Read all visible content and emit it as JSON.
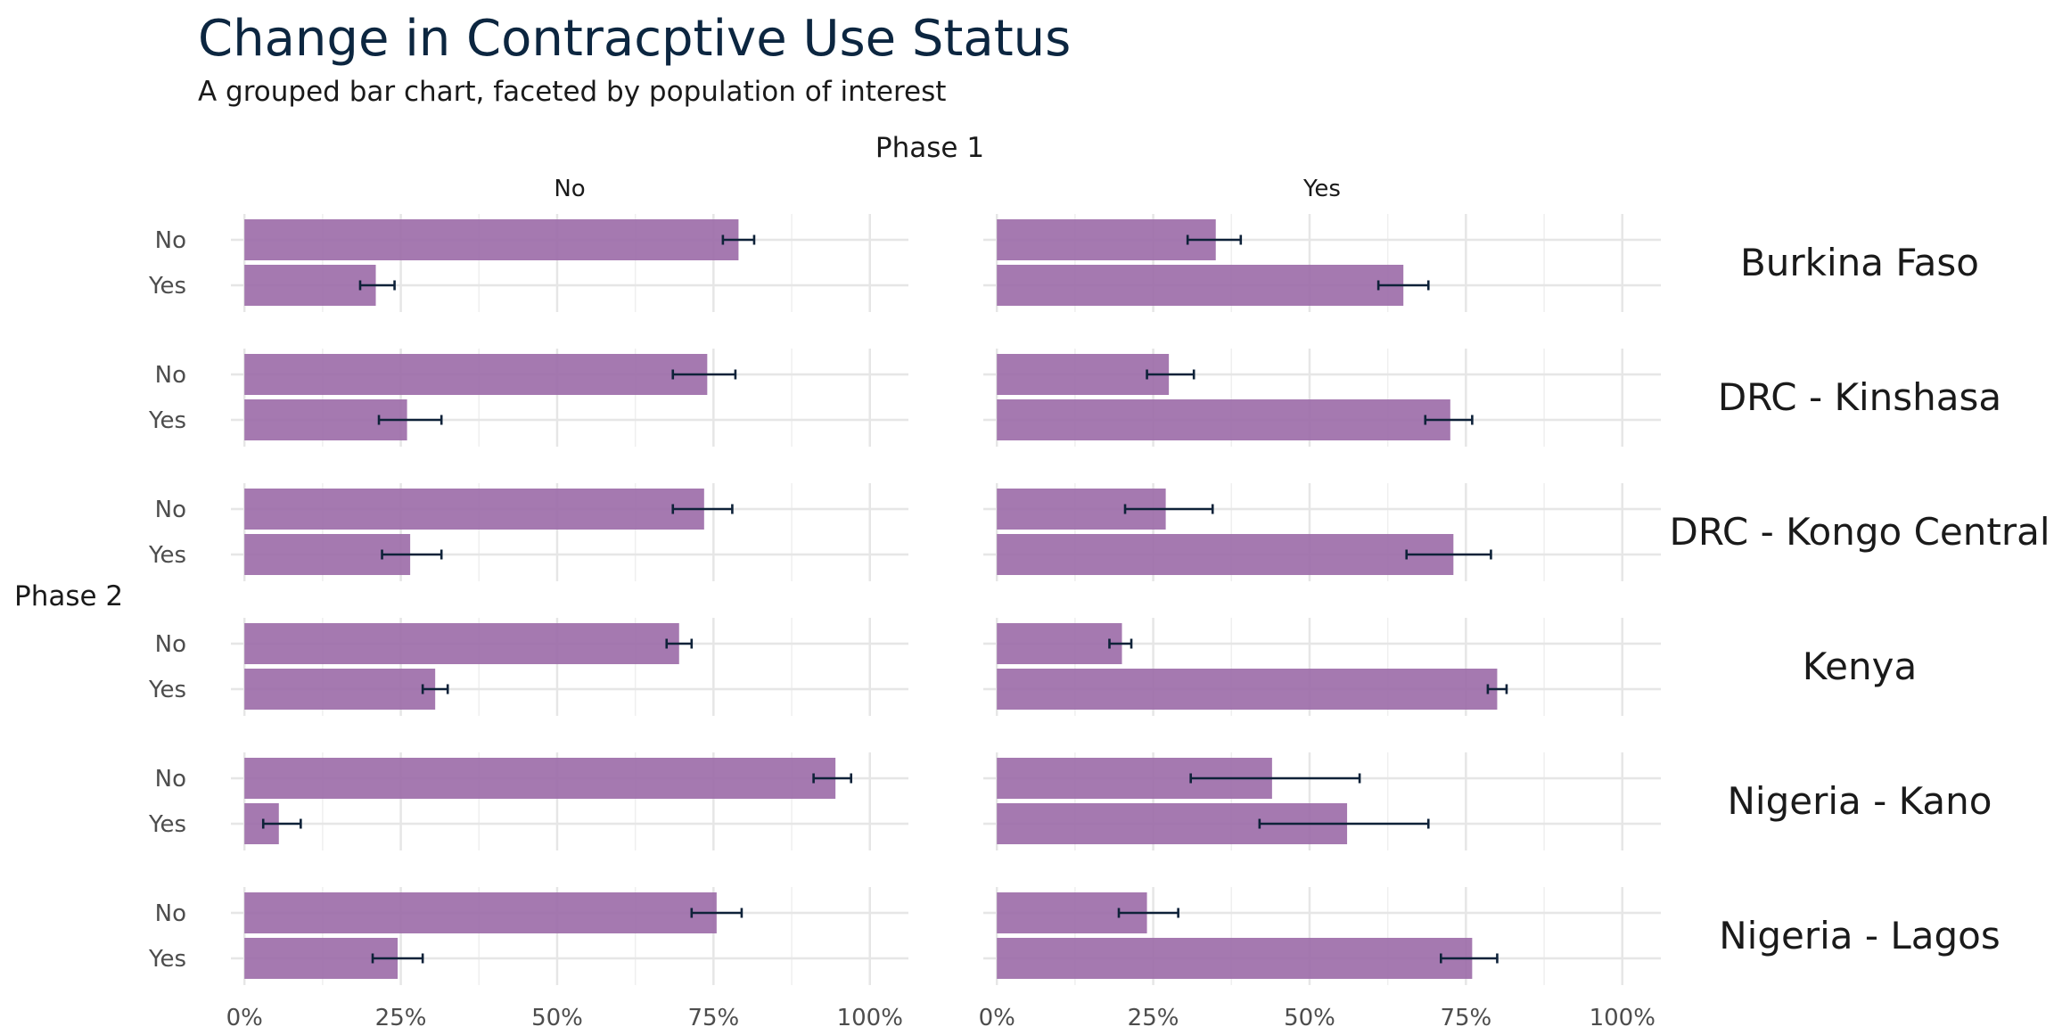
{
  "chart_data": {
    "type": "bar",
    "title": "Change in Contracptive Use Status",
    "subtitle": "A grouped bar chart, faceted by population of interest",
    "column_strip_title": "Phase 1",
    "row_axis_title": "Phase 2",
    "columns": [
      "No",
      "Yes"
    ],
    "categories": [
      "No",
      "Yes"
    ],
    "x_ticks": [
      "0%",
      "25%",
      "50%",
      "75%",
      "100%"
    ],
    "xlim": [
      0,
      1
    ],
    "grid": true,
    "bar_color": "#9b6aa7",
    "error_color": "#0e2239",
    "facets": [
      {
        "name": "Burkina Faso",
        "panels": [
          {
            "phase1": "No",
            "bars": [
              {
                "phase2": "No",
                "value": 0.79,
                "ci": [
                  0.765,
                  0.815
                ]
              },
              {
                "phase2": "Yes",
                "value": 0.21,
                "ci": [
                  0.185,
                  0.24
                ]
              }
            ]
          },
          {
            "phase1": "Yes",
            "bars": [
              {
                "phase2": "No",
                "value": 0.35,
                "ci": [
                  0.305,
                  0.39
                ]
              },
              {
                "phase2": "Yes",
                "value": 0.65,
                "ci": [
                  0.61,
                  0.69
                ]
              }
            ]
          }
        ]
      },
      {
        "name": "DRC - Kinshasa",
        "panels": [
          {
            "phase1": "No",
            "bars": [
              {
                "phase2": "No",
                "value": 0.74,
                "ci": [
                  0.685,
                  0.785
                ]
              },
              {
                "phase2": "Yes",
                "value": 0.26,
                "ci": [
                  0.215,
                  0.315
                ]
              }
            ]
          },
          {
            "phase1": "Yes",
            "bars": [
              {
                "phase2": "No",
                "value": 0.275,
                "ci": [
                  0.24,
                  0.315
                ]
              },
              {
                "phase2": "Yes",
                "value": 0.725,
                "ci": [
                  0.685,
                  0.76
                ]
              }
            ]
          }
        ]
      },
      {
        "name": "DRC - Kongo Central",
        "panels": [
          {
            "phase1": "No",
            "bars": [
              {
                "phase2": "No",
                "value": 0.735,
                "ci": [
                  0.685,
                  0.78
                ]
              },
              {
                "phase2": "Yes",
                "value": 0.265,
                "ci": [
                  0.22,
                  0.315
                ]
              }
            ]
          },
          {
            "phase1": "Yes",
            "bars": [
              {
                "phase2": "No",
                "value": 0.27,
                "ci": [
                  0.205,
                  0.345
                ]
              },
              {
                "phase2": "Yes",
                "value": 0.73,
                "ci": [
                  0.655,
                  0.79
                ]
              }
            ]
          }
        ]
      },
      {
        "name": "Kenya",
        "panels": [
          {
            "phase1": "No",
            "bars": [
              {
                "phase2": "No",
                "value": 0.695,
                "ci": [
                  0.675,
                  0.715
                ]
              },
              {
                "phase2": "Yes",
                "value": 0.305,
                "ci": [
                  0.285,
                  0.325
                ]
              }
            ]
          },
          {
            "phase1": "Yes",
            "bars": [
              {
                "phase2": "No",
                "value": 0.2,
                "ci": [
                  0.18,
                  0.215
                ]
              },
              {
                "phase2": "Yes",
                "value": 0.8,
                "ci": [
                  0.785,
                  0.815
                ]
              }
            ]
          }
        ]
      },
      {
        "name": "Nigeria - Kano",
        "panels": [
          {
            "phase1": "No",
            "bars": [
              {
                "phase2": "No",
                "value": 0.945,
                "ci": [
                  0.91,
                  0.97
                ]
              },
              {
                "phase2": "Yes",
                "value": 0.055,
                "ci": [
                  0.03,
                  0.09
                ]
              }
            ]
          },
          {
            "phase1": "Yes",
            "bars": [
              {
                "phase2": "No",
                "value": 0.44,
                "ci": [
                  0.31,
                  0.58
                ]
              },
              {
                "phase2": "Yes",
                "value": 0.56,
                "ci": [
                  0.42,
                  0.69
                ]
              }
            ]
          }
        ]
      },
      {
        "name": "Nigeria - Lagos",
        "panels": [
          {
            "phase1": "No",
            "bars": [
              {
                "phase2": "No",
                "value": 0.755,
                "ci": [
                  0.715,
                  0.795
                ]
              },
              {
                "phase2": "Yes",
                "value": 0.245,
                "ci": [
                  0.205,
                  0.285
                ]
              }
            ]
          },
          {
            "phase1": "Yes",
            "bars": [
              {
                "phase2": "No",
                "value": 0.24,
                "ci": [
                  0.195,
                  0.29
                ]
              },
              {
                "phase2": "Yes",
                "value": 0.76,
                "ci": [
                  0.71,
                  0.8
                ]
              }
            ]
          }
        ]
      }
    ]
  }
}
